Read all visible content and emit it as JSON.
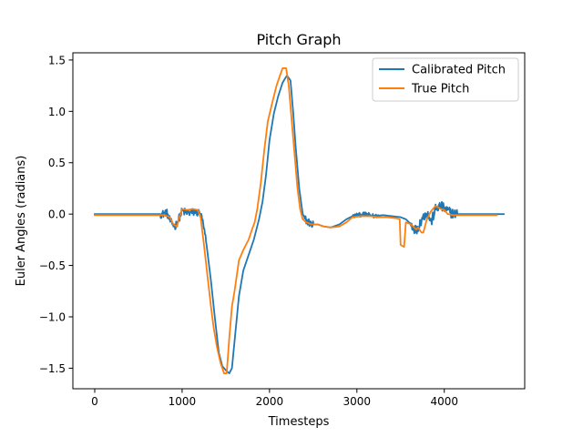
{
  "chart_data": {
    "type": "line",
    "title": "Pitch Graph",
    "xlabel": "Timesteps",
    "ylabel": "Euler Angles (radians)",
    "xlim": [
      -250,
      4920
    ],
    "ylim": [
      -1.7,
      1.57
    ],
    "xticks": [
      0,
      1000,
      2000,
      3000,
      4000
    ],
    "yticks": [
      -1.5,
      -1.0,
      -0.5,
      0.0,
      0.5,
      1.0,
      1.5
    ],
    "xtick_labels": [
      "0",
      "1000",
      "2000",
      "3000",
      "4000"
    ],
    "ytick_labels": [
      "−1.5",
      "−1.0",
      "−0.5",
      "0.0",
      "0.5",
      "1.0",
      "1.5"
    ],
    "grid": false,
    "legend_position": "top-right",
    "series": [
      {
        "name": "Calibrated Pitch",
        "color": "#1f77b4",
        "noise_ranges": [
          [
            750,
            1270,
            0.04
          ],
          [
            2400,
            2500,
            0.04
          ],
          [
            2950,
            3250,
            0.02
          ],
          [
            3600,
            4150,
            0.05
          ]
        ],
        "points": [
          [
            0,
            0.0
          ],
          [
            700,
            0.0
          ],
          [
            780,
            0.0
          ],
          [
            820,
            0.02
          ],
          [
            870,
            -0.08
          ],
          [
            920,
            -0.12
          ],
          [
            960,
            -0.05
          ],
          [
            1000,
            0.03
          ],
          [
            1060,
            0.01
          ],
          [
            1150,
            0.02
          ],
          [
            1200,
            0.01
          ],
          [
            1230,
            -0.05
          ],
          [
            1280,
            -0.3
          ],
          [
            1330,
            -0.65
          ],
          [
            1380,
            -1.05
          ],
          [
            1420,
            -1.35
          ],
          [
            1460,
            -1.48
          ],
          [
            1500,
            -1.52
          ],
          [
            1540,
            -1.55
          ],
          [
            1570,
            -1.5
          ],
          [
            1610,
            -1.15
          ],
          [
            1650,
            -0.8
          ],
          [
            1700,
            -0.55
          ],
          [
            1760,
            -0.4
          ],
          [
            1820,
            -0.25
          ],
          [
            1880,
            -0.05
          ],
          [
            1920,
            0.12
          ],
          [
            1960,
            0.38
          ],
          [
            2000,
            0.72
          ],
          [
            2050,
            0.98
          ],
          [
            2100,
            1.15
          ],
          [
            2150,
            1.28
          ],
          [
            2200,
            1.35
          ],
          [
            2240,
            1.3
          ],
          [
            2270,
            1.0
          ],
          [
            2300,
            0.65
          ],
          [
            2340,
            0.25
          ],
          [
            2380,
            0.0
          ],
          [
            2420,
            -0.06
          ],
          [
            2480,
            -0.1
          ],
          [
            2550,
            -0.1
          ],
          [
            2620,
            -0.12
          ],
          [
            2700,
            -0.13
          ],
          [
            2800,
            -0.1
          ],
          [
            2880,
            -0.05
          ],
          [
            2950,
            -0.02
          ],
          [
            3000,
            -0.01
          ],
          [
            3100,
            0.0
          ],
          [
            3200,
            -0.02
          ],
          [
            3300,
            -0.01
          ],
          [
            3400,
            -0.02
          ],
          [
            3500,
            -0.03
          ],
          [
            3560,
            -0.05
          ],
          [
            3620,
            -0.1
          ],
          [
            3680,
            -0.16
          ],
          [
            3740,
            -0.05
          ],
          [
            3800,
            0.02
          ],
          [
            3850,
            -0.08
          ],
          [
            3900,
            0.05
          ],
          [
            3960,
            0.08
          ],
          [
            4000,
            0.05
          ],
          [
            4060,
            0.02
          ],
          [
            4120,
            0.0
          ],
          [
            4200,
            0.0
          ],
          [
            4400,
            0.0
          ],
          [
            4680,
            0.0
          ]
        ]
      },
      {
        "name": "True Pitch",
        "color": "#ff7f0e",
        "noise_ranges": [],
        "points": [
          [
            0,
            -0.01
          ],
          [
            500,
            -0.01
          ],
          [
            800,
            -0.01
          ],
          [
            860,
            -0.03
          ],
          [
            900,
            -0.1
          ],
          [
            940,
            -0.12
          ],
          [
            970,
            -0.03
          ],
          [
            1000,
            0.05
          ],
          [
            1060,
            0.04
          ],
          [
            1120,
            0.05
          ],
          [
            1180,
            0.04
          ],
          [
            1210,
            -0.02
          ],
          [
            1250,
            -0.3
          ],
          [
            1290,
            -0.6
          ],
          [
            1330,
            -0.9
          ],
          [
            1360,
            -1.1
          ],
          [
            1400,
            -1.3
          ],
          [
            1440,
            -1.45
          ],
          [
            1480,
            -1.55
          ],
          [
            1510,
            -1.55
          ],
          [
            1540,
            -1.2
          ],
          [
            1570,
            -0.9
          ],
          [
            1600,
            -0.75
          ],
          [
            1650,
            -0.45
          ],
          [
            1700,
            -0.35
          ],
          [
            1760,
            -0.25
          ],
          [
            1800,
            -0.15
          ],
          [
            1830,
            -0.08
          ],
          [
            1860,
            0.05
          ],
          [
            1900,
            0.3
          ],
          [
            1940,
            0.62
          ],
          [
            1980,
            0.9
          ],
          [
            2030,
            1.08
          ],
          [
            2080,
            1.25
          ],
          [
            2120,
            1.35
          ],
          [
            2150,
            1.42
          ],
          [
            2190,
            1.42
          ],
          [
            2220,
            1.25
          ],
          [
            2250,
            0.95
          ],
          [
            2280,
            0.65
          ],
          [
            2320,
            0.25
          ],
          [
            2350,
            0.05
          ],
          [
            2380,
            -0.05
          ],
          [
            2420,
            -0.08
          ],
          [
            2480,
            -0.1
          ],
          [
            2550,
            -0.1
          ],
          [
            2620,
            -0.12
          ],
          [
            2700,
            -0.13
          ],
          [
            2800,
            -0.12
          ],
          [
            2880,
            -0.08
          ],
          [
            2950,
            -0.03
          ],
          [
            3050,
            -0.02
          ],
          [
            3150,
            -0.02
          ],
          [
            3250,
            -0.03
          ],
          [
            3350,
            -0.03
          ],
          [
            3450,
            -0.04
          ],
          [
            3490,
            -0.05
          ],
          [
            3500,
            -0.3
          ],
          [
            3540,
            -0.32
          ],
          [
            3560,
            -0.08
          ],
          [
            3620,
            -0.1
          ],
          [
            3680,
            -0.15
          ],
          [
            3700,
            -0.13
          ],
          [
            3740,
            -0.18
          ],
          [
            3760,
            -0.18
          ],
          [
            3800,
            -0.05
          ],
          [
            3850,
            0.03
          ],
          [
            3900,
            0.08
          ],
          [
            3960,
            0.05
          ],
          [
            4000,
            0.04
          ],
          [
            4040,
            0.0
          ],
          [
            4100,
            -0.01
          ],
          [
            4300,
            -0.01
          ],
          [
            4500,
            -0.01
          ],
          [
            4600,
            -0.01
          ]
        ]
      }
    ]
  }
}
